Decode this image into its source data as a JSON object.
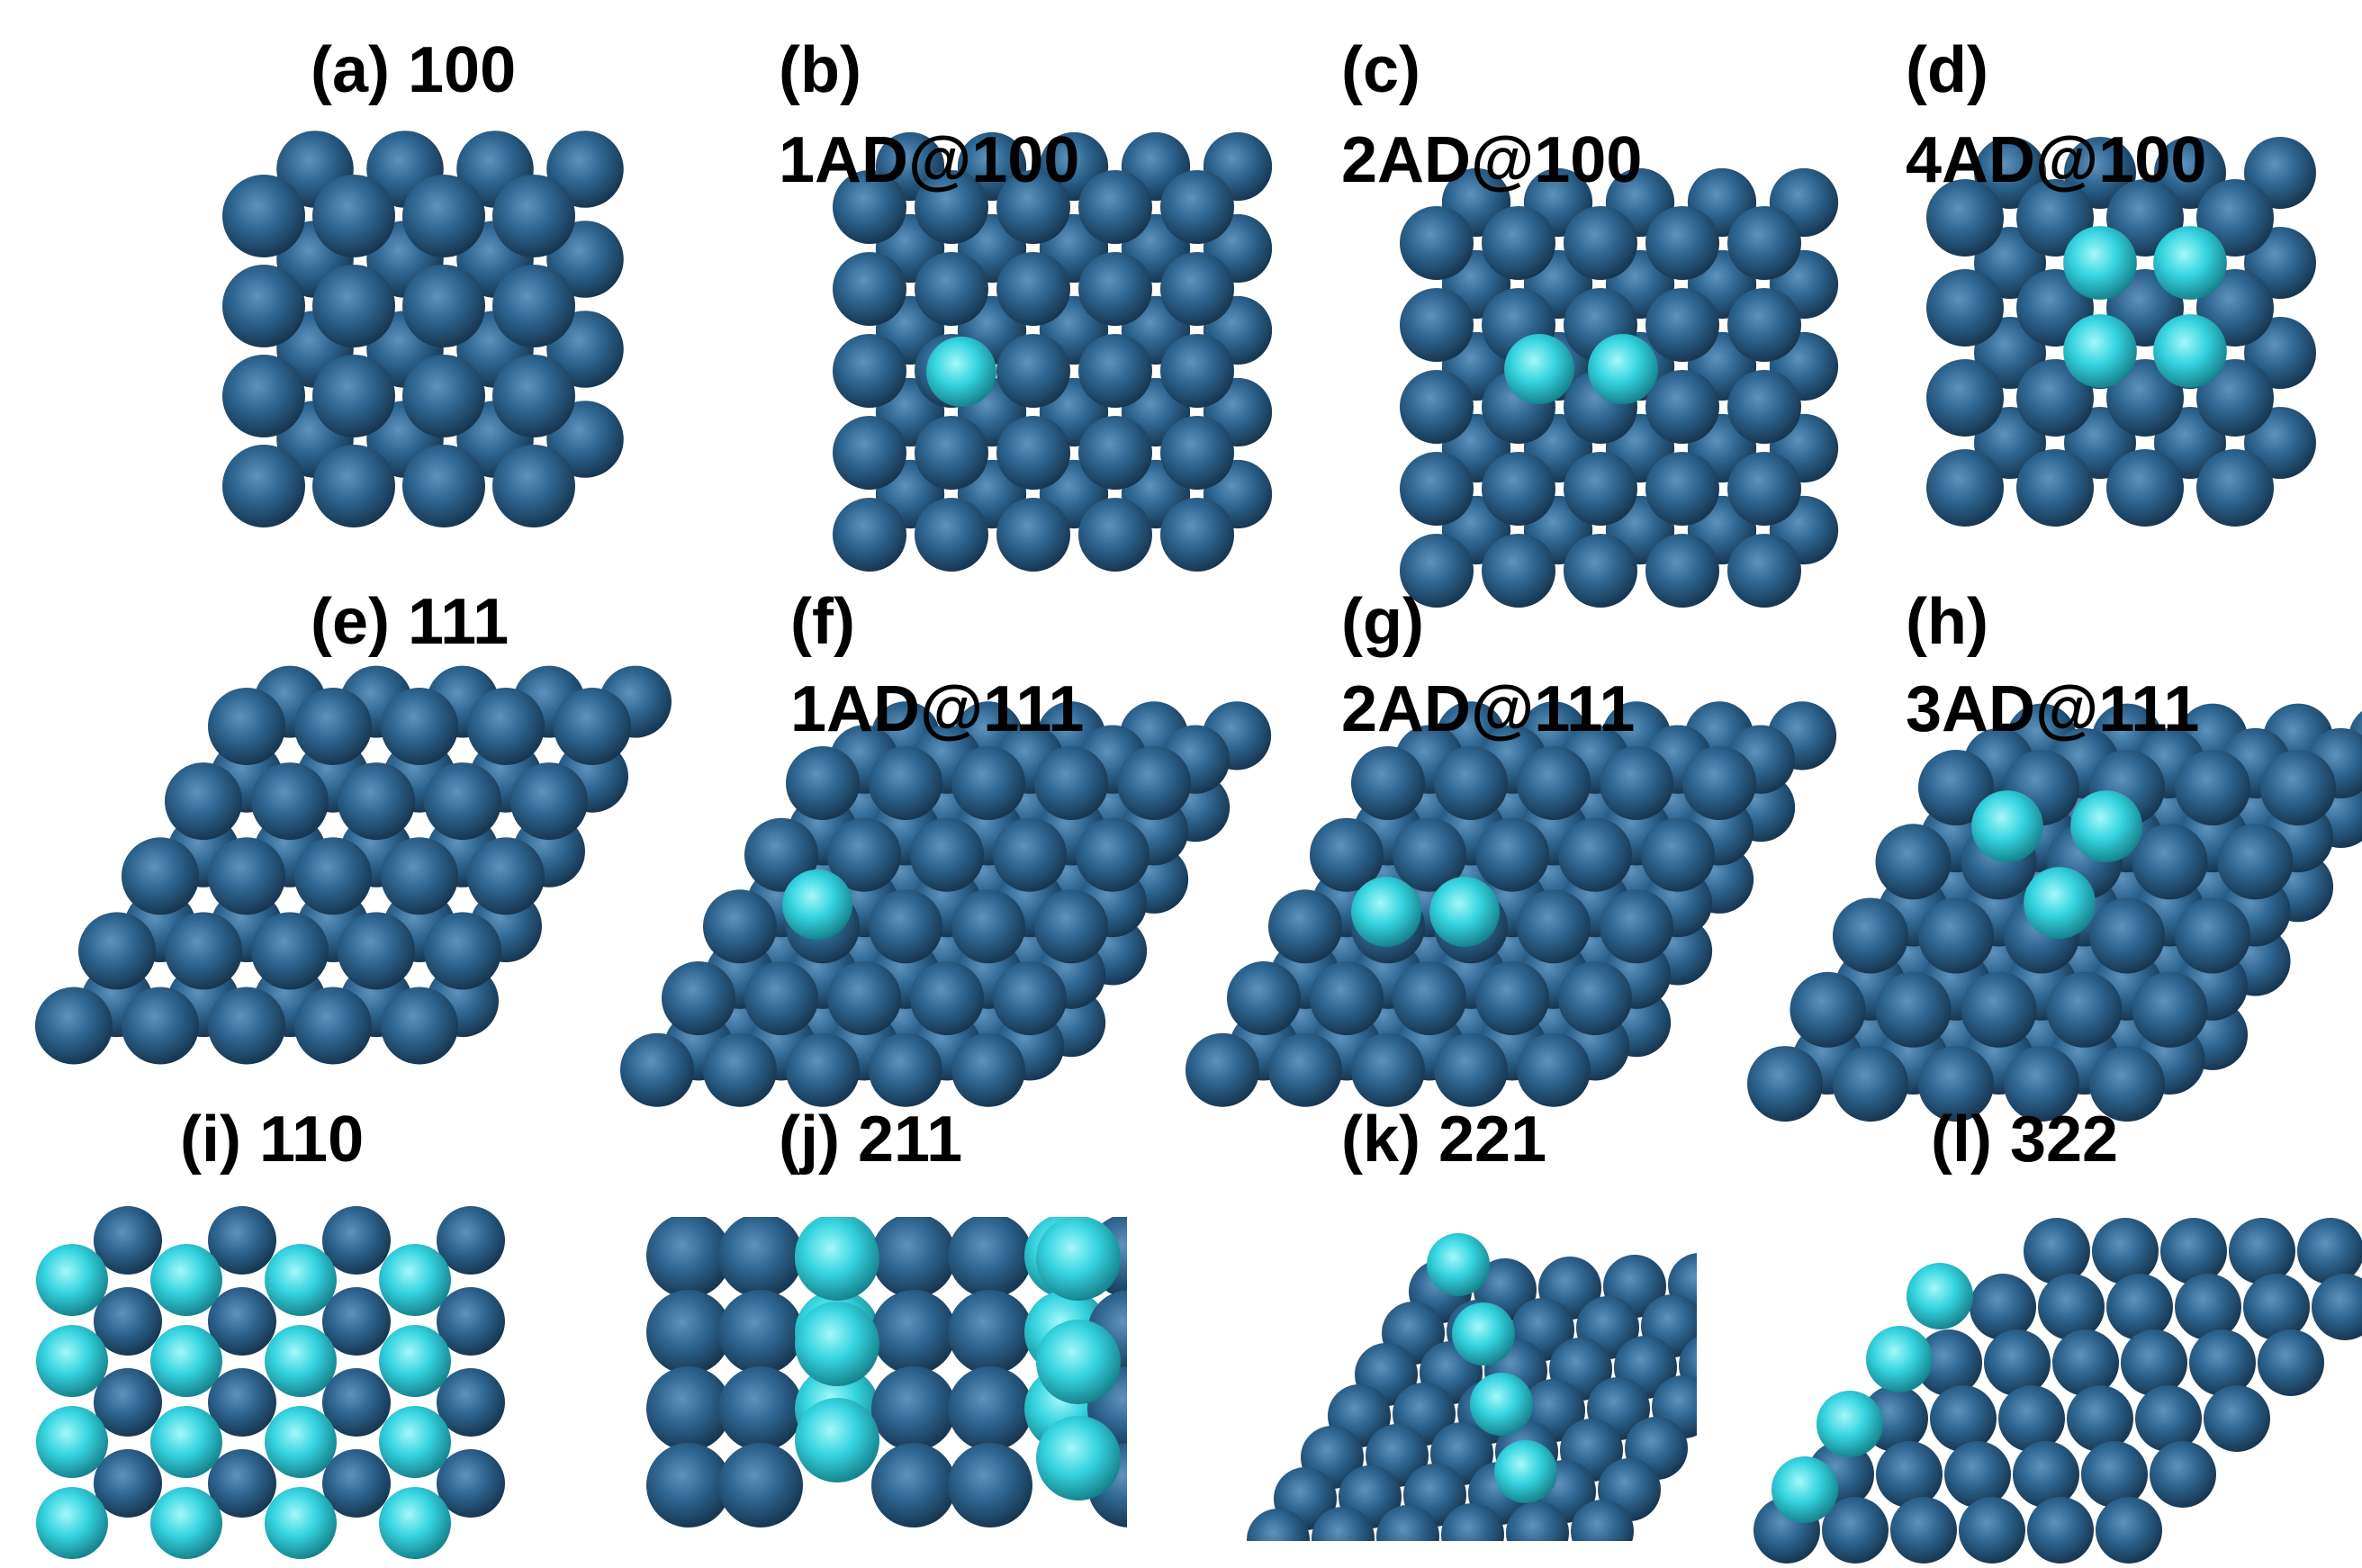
{
  "figure": {
    "colors": {
      "substrate_atom": "#27587f",
      "adatom": "#35d4e0",
      "background": "#ffffff"
    },
    "panels": [
      {
        "id": "a",
        "label": "(a) 100",
        "subtitle": "",
        "surface": "100"
      },
      {
        "id": "b",
        "label": "(b)",
        "subtitle": "1AD@100",
        "surface": "100",
        "adatoms": 1
      },
      {
        "id": "c",
        "label": "(c)",
        "subtitle": "2AD@100",
        "surface": "100",
        "adatoms": 2
      },
      {
        "id": "d",
        "label": "(d)",
        "subtitle": "4AD@100",
        "surface": "100",
        "adatoms": 4
      },
      {
        "id": "e",
        "label": "(e) 111",
        "subtitle": "",
        "surface": "111"
      },
      {
        "id": "f",
        "label": "(f)",
        "subtitle": "1AD@111",
        "surface": "111",
        "adatoms": 1
      },
      {
        "id": "g",
        "label": "(g)",
        "subtitle": "2AD@111",
        "surface": "111",
        "adatoms": 2
      },
      {
        "id": "h",
        "label": "(h)",
        "subtitle": "3AD@111",
        "surface": "111",
        "adatoms": 3
      },
      {
        "id": "i",
        "label": "(i) 110",
        "subtitle": "",
        "surface": "110"
      },
      {
        "id": "j",
        "label": "(j) 211",
        "subtitle": "",
        "surface": "211"
      },
      {
        "id": "k",
        "label": "(k) 221",
        "subtitle": "",
        "surface": "221"
      },
      {
        "id": "l",
        "label": "(l) 322",
        "subtitle": "",
        "surface": "322"
      }
    ]
  }
}
